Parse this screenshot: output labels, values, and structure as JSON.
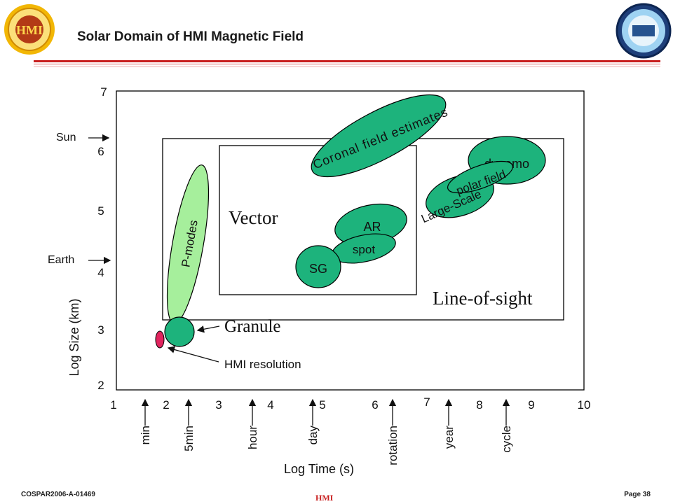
{
  "header": {
    "title": "Solar Domain of HMI Magnetic Field"
  },
  "footer": {
    "left": "COSPAR2006-A-01469",
    "right": "Page 38",
    "center": "HMI"
  },
  "axes": {
    "y_label": "Log Size (km)",
    "x_label": "Log Time (s)",
    "y_ticks": [
      "2",
      "3",
      "4",
      "5",
      "6",
      "7"
    ],
    "x_ticks": [
      "1",
      "2",
      "3",
      "4",
      "5",
      "6",
      "7",
      "8",
      "9",
      "10"
    ]
  },
  "y_markers": [
    {
      "label": "Sun"
    },
    {
      "label": "Earth"
    }
  ],
  "time_markers": [
    "min",
    "5min",
    "hour",
    "day",
    "rotation",
    "year",
    "cycle"
  ],
  "regions": {
    "vector": "Vector",
    "line_of_sight": "Line-of-sight"
  },
  "features": {
    "coronal": "Coronal field estimates",
    "dynamo": "dynamo",
    "polar": "polar field",
    "large_scale": "Large-Scale",
    "ar": "AR",
    "spot": "spot",
    "sg": "SG",
    "pmodes": "P-modes",
    "granule": "Granule",
    "hmi_resolution": "HMI resolution"
  },
  "colors": {
    "feature_fill": "#1db37c",
    "pmodes_fill": "#a6ef9c",
    "resolution_fill": "#e0245e",
    "header_red": "#c81e1e"
  }
}
